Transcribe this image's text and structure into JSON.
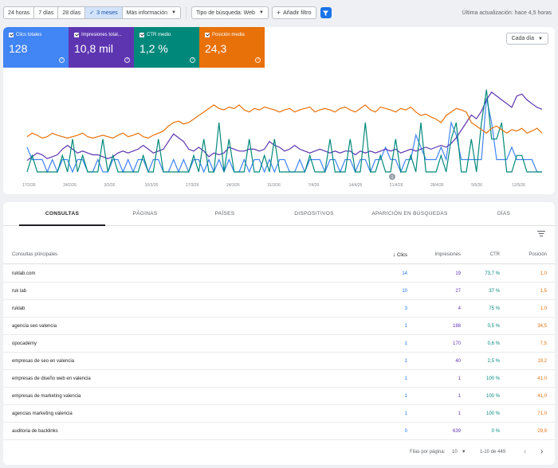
{
  "filters": {
    "ranges": [
      "24 horas",
      "7 días",
      "28 días",
      "3 meses"
    ],
    "selected_check": "✓",
    "more": "Más información",
    "search_type": "Tipo de búsqueda: Web",
    "add_filter": "Añadir filtro",
    "updated": "Última actualización: hace 4,5 horas"
  },
  "metrics": [
    {
      "label": "Clics totales",
      "value": "128",
      "color": "#4285f4"
    },
    {
      "label": "Impresiones total...",
      "value": "10,8 mil",
      "color": "#5e35b1"
    },
    {
      "label": "CTR medio",
      "value": "1,2 %",
      "color": "#00897b"
    },
    {
      "label": "Posición media",
      "value": "24,3",
      "color": "#e8710a"
    }
  ],
  "help_glyph": "?",
  "granularity": "Cada día",
  "chart_data": {
    "type": "line",
    "x_labels": [
      "17/2/26",
      "24/2/26",
      "3/3/26",
      "10/3/26",
      "17/3/26",
      "24/3/26",
      "31/3/26",
      "7/4/26",
      "14/4/26",
      "21/4/26",
      "28/4/26",
      "5/5/26",
      "12/5/26"
    ],
    "annotation": "1",
    "series": [
      {
        "name": "Clics totales",
        "color": "#4285f4",
        "values": [
          2,
          1,
          1,
          1,
          0,
          1,
          0,
          1,
          1,
          0,
          1,
          1,
          0,
          0,
          1,
          0,
          0,
          1,
          1,
          0,
          1,
          0,
          1,
          1,
          0,
          1,
          1,
          0,
          0,
          1,
          0,
          1,
          0,
          1,
          1,
          0,
          1,
          0,
          1,
          0,
          1,
          0,
          0,
          1,
          0,
          1,
          1,
          0,
          1,
          0,
          1,
          1,
          0,
          0,
          1,
          0,
          1,
          1,
          1,
          0,
          1,
          1,
          0,
          1,
          1,
          0,
          1,
          1,
          0,
          1,
          1,
          2,
          1,
          1,
          0,
          1,
          1,
          3,
          2,
          1,
          1,
          1,
          2,
          1,
          4,
          3,
          1,
          1,
          1,
          1,
          1,
          6,
          4,
          1,
          1,
          1,
          2,
          1,
          1,
          1,
          1,
          0,
          0
        ]
      },
      {
        "name": "Impresiones totales",
        "color": "#5e35b1",
        "values": [
          30,
          40,
          50,
          45,
          35,
          40,
          45,
          60,
          70,
          60,
          50,
          55,
          50,
          45,
          45,
          40,
          35,
          40,
          50,
          55,
          50,
          55,
          60,
          70,
          60,
          50,
          55,
          60,
          80,
          100,
          90,
          80,
          60,
          55,
          65,
          55,
          40,
          50,
          45,
          50,
          65,
          60,
          55,
          55,
          60,
          60,
          55,
          60,
          80,
          70,
          65,
          55,
          60,
          70,
          60,
          55,
          50,
          55,
          60,
          55,
          50,
          55,
          50,
          55,
          55,
          45,
          55,
          50,
          55,
          50,
          55,
          60,
          55,
          60,
          50,
          55,
          60,
          55,
          60,
          65,
          60,
          65,
          70,
          65,
          75,
          90,
          110,
          130,
          150,
          140,
          160,
          190,
          210,
          200,
          190,
          180,
          170,
          200,
          205,
          190,
          180,
          170,
          165
        ]
      },
      {
        "name": "CTR medio",
        "color": "#00897b",
        "values": [
          0,
          0.5,
          0,
          0,
          0,
          0,
          0,
          0.5,
          0,
          1,
          0,
          0.5,
          0,
          0,
          0,
          1,
          0,
          0.5,
          0,
          0,
          0,
          0,
          0,
          0.5,
          0,
          0,
          1,
          0,
          0,
          0,
          0,
          0,
          0,
          0.5,
          0,
          1,
          0,
          0,
          1.5,
          0,
          1,
          0,
          0,
          0,
          1,
          0,
          0,
          0.5,
          0,
          1,
          0,
          0,
          0,
          0,
          0,
          0,
          0.5,
          0,
          0,
          0,
          1,
          0,
          0,
          0,
          1,
          0,
          0,
          1.5,
          0,
          0,
          0.5,
          0,
          0,
          1,
          0,
          0,
          0.5,
          0,
          1.5,
          0,
          0,
          0,
          0.5,
          0,
          1,
          1.5,
          0,
          0,
          1,
          0,
          1.5,
          2.5,
          1,
          1,
          1.5,
          0,
          0,
          0.5,
          0.5,
          0,
          0,
          0,
          0
        ]
      },
      {
        "name": "Posición media",
        "color": "#e8710a",
        "values": [
          50,
          55,
          52,
          48,
          50,
          55,
          52,
          50,
          48,
          50,
          52,
          55,
          50,
          48,
          50,
          52,
          50,
          48,
          52,
          55,
          50,
          52,
          55,
          50,
          48,
          52,
          55,
          58,
          65,
          70,
          72,
          68,
          70,
          75,
          80,
          85,
          90,
          95,
          90,
          88,
          92,
          90,
          95,
          88,
          85,
          90,
          88,
          92,
          90,
          88,
          85,
          88,
          90,
          85,
          88,
          90,
          92,
          85,
          88,
          90,
          88,
          85,
          90,
          92,
          88,
          85,
          90,
          95,
          88,
          85,
          92,
          90,
          88,
          85,
          90,
          88,
          92,
          85,
          80,
          82,
          78,
          75,
          70,
          80,
          85,
          90,
          88,
          85,
          70,
          65,
          60,
          55,
          62,
          65,
          60,
          55,
          60,
          58,
          62,
          55,
          58,
          62,
          55
        ]
      }
    ]
  },
  "tabs": [
    "CONSULTAS",
    "PÁGINAS",
    "PAÍSES",
    "DISPOSITIVOS",
    "APARICIÓN EN BÚSQUEDAS",
    "DÍAS"
  ],
  "table": {
    "headers": {
      "query": "Consultas principales",
      "sort_arrow": "↓",
      "clicks": "Clics",
      "impressions": "Impresiones",
      "ctr": "CTR",
      "position": "Posición"
    },
    "rows": [
      {
        "query": "ruklab.com",
        "clicks": "14",
        "impressions": "19",
        "ctr": "73,7 %",
        "position": "1,0"
      },
      {
        "query": "ruk lab",
        "clicks": "10",
        "impressions": "27",
        "ctr": "37 %",
        "position": "1,5"
      },
      {
        "query": "ruklab",
        "clicks": "3",
        "impressions": "4",
        "ctr": "75 %",
        "position": "1,0"
      },
      {
        "query": "agencia seo valencia",
        "clicks": "1",
        "impressions": "188",
        "ctr": "0,5 %",
        "position": "34,5"
      },
      {
        "query": "opocademy",
        "clicks": "1",
        "impressions": "170",
        "ctr": "0,6 %",
        "position": "7,5"
      },
      {
        "query": "empresas de seo en valencia",
        "clicks": "1",
        "impressions": "40",
        "ctr": "2,5 %",
        "position": "19,2"
      },
      {
        "query": "empresas de diseño web en valencia",
        "clicks": "1",
        "impressions": "1",
        "ctr": "100 %",
        "position": "41,0"
      },
      {
        "query": "empresas de marketing valencia",
        "clicks": "1",
        "impressions": "1",
        "ctr": "100 %",
        "position": "41,0"
      },
      {
        "query": "agencias marketing valencia",
        "clicks": "1",
        "impressions": "1",
        "ctr": "100 %",
        "position": "71,0"
      },
      {
        "query": "auditoria de backlinks",
        "clicks": "0",
        "impressions": "639",
        "ctr": "0 %",
        "position": "29,9"
      }
    ]
  },
  "pagination": {
    "rows_label": "Filas por página:",
    "rows_value": "10",
    "range": "1-10 de 449"
  }
}
